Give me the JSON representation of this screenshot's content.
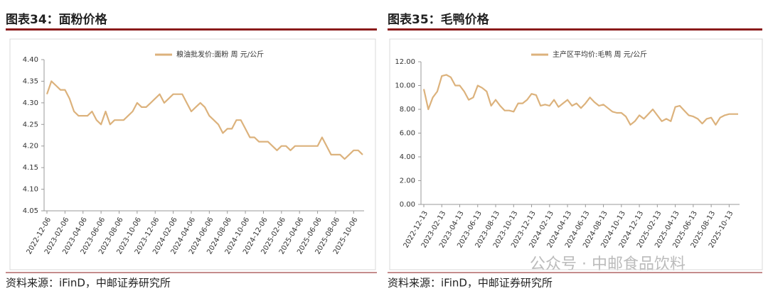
{
  "chart_data": [
    {
      "type": "line",
      "title": "图表34：面粉价格",
      "source": "资料来源：iFinD，中邮证券研究所",
      "categories": [
        "2022-12-06",
        null,
        null,
        null,
        "2023-02-06",
        null,
        null,
        null,
        "2023-04-06",
        null,
        null,
        null,
        "2023-06-06",
        null,
        null,
        null,
        "2023-08-06",
        null,
        null,
        null,
        "2023-10-06",
        null,
        null,
        null,
        "2023-12-06",
        null,
        null,
        null,
        "2024-02-06",
        null,
        null,
        null,
        "2024-04-06",
        null,
        null,
        null,
        "2024-06-06",
        null,
        null,
        null,
        "2024-08-06",
        null,
        null,
        null,
        "2024-10-06",
        null,
        null,
        null,
        "2024-12-06",
        null,
        null,
        null,
        "2025-02-06",
        null,
        null,
        null,
        "2025-04-06",
        null,
        null,
        null,
        "2025-06-06",
        null,
        null,
        null,
        "2025-08-06",
        null,
        null,
        null,
        "2025-10-06",
        null,
        null
      ],
      "series": [
        {
          "name": "粮油批发价:面粉 周 元/公斤",
          "color": "#dcb27c",
          "values": [
            4.32,
            4.35,
            4.34,
            4.33,
            4.33,
            4.31,
            4.28,
            4.27,
            4.27,
            4.27,
            4.28,
            4.26,
            4.25,
            4.28,
            4.25,
            4.26,
            4.26,
            4.26,
            4.27,
            4.28,
            4.3,
            4.29,
            4.29,
            4.3,
            4.31,
            4.32,
            4.3,
            4.31,
            4.32,
            4.32,
            4.32,
            4.3,
            4.28,
            4.29,
            4.3,
            4.29,
            4.27,
            4.26,
            4.25,
            4.23,
            4.24,
            4.24,
            4.26,
            4.26,
            4.24,
            4.22,
            4.22,
            4.21,
            4.21,
            4.21,
            4.2,
            4.19,
            4.2,
            4.2,
            4.19,
            4.2,
            4.2,
            4.2,
            4.2,
            4.2,
            4.2,
            4.22,
            4.2,
            4.18,
            4.18,
            4.18,
            4.17,
            4.18,
            4.19,
            4.19,
            4.18
          ]
        }
      ],
      "ylim": [
        4.05,
        4.4
      ],
      "yticks": [
        {
          "value": 4.05,
          "label": "4.05"
        },
        {
          "value": 4.1,
          "label": "4.10"
        },
        {
          "value": 4.15,
          "label": "4.15"
        },
        {
          "value": 4.2,
          "label": "4.20"
        },
        {
          "value": 4.25,
          "label": "4.25"
        },
        {
          "value": 4.3,
          "label": "4.30"
        },
        {
          "value": 4.35,
          "label": "4.35"
        },
        {
          "value": 4.4,
          "label": "4.40"
        }
      ],
      "grid": false,
      "legend": "top"
    },
    {
      "type": "line",
      "title": "图表35：毛鸭价格",
      "source": "资料来源：iFinD，中邮证券研究所",
      "categories": [
        "2022-12-13",
        null,
        null,
        null,
        "2023-02-13",
        null,
        null,
        null,
        "2023-04-13",
        null,
        null,
        null,
        "2023-06-13",
        null,
        null,
        null,
        "2023-08-13",
        null,
        null,
        null,
        "2023-10-13",
        null,
        null,
        null,
        "2023-12-13",
        null,
        null,
        null,
        "2024-02-13",
        null,
        null,
        null,
        "2024-04-13",
        null,
        null,
        null,
        "2024-06-13",
        null,
        null,
        null,
        "2024-08-13",
        null,
        null,
        null,
        "2024-10-13",
        null,
        null,
        null,
        "2024-12-13",
        null,
        null,
        null,
        "2025-02-13",
        null,
        null,
        null,
        "2025-04-13",
        null,
        null,
        null,
        "2025-06-13",
        null,
        null,
        null,
        "2025-08-13",
        null,
        null,
        null,
        "2025-10-13",
        null,
        null
      ],
      "series": [
        {
          "name": "主产区平均价:毛鸭 周 元/公斤",
          "color": "#dcb27c",
          "values": [
            9.7,
            8.0,
            9.0,
            9.5,
            10.8,
            10.9,
            10.7,
            10.0,
            10.0,
            9.5,
            8.8,
            9.0,
            10.0,
            9.8,
            9.5,
            8.3,
            8.8,
            8.3,
            7.9,
            7.9,
            7.8,
            8.5,
            8.5,
            8.8,
            9.3,
            9.2,
            8.3,
            8.4,
            8.3,
            8.8,
            8.2,
            8.5,
            8.8,
            8.3,
            8.5,
            8.1,
            8.5,
            9.0,
            8.6,
            8.3,
            8.4,
            8.1,
            7.8,
            7.7,
            7.7,
            7.4,
            6.7,
            7.0,
            7.5,
            7.2,
            7.6,
            8.0,
            7.5,
            7.0,
            7.2,
            7.0,
            8.2,
            8.3,
            7.9,
            7.5,
            7.4,
            7.2,
            6.8,
            7.2,
            7.3,
            6.7,
            7.3,
            7.5,
            7.6,
            7.6,
            7.6
          ]
        }
      ],
      "ylim": [
        0,
        12
      ],
      "yticks": [
        {
          "value": 0,
          "label": "0.00"
        },
        {
          "value": 2,
          "label": "2.00"
        },
        {
          "value": 4,
          "label": "4.00"
        },
        {
          "value": 6,
          "label": "6.00"
        },
        {
          "value": 8,
          "label": "8.00"
        },
        {
          "value": 10,
          "label": "10.00"
        },
        {
          "value": 12,
          "label": "12.00"
        }
      ],
      "grid": false,
      "legend": "top"
    }
  ],
  "watermark": "公众号 · 中邮食品饮料"
}
